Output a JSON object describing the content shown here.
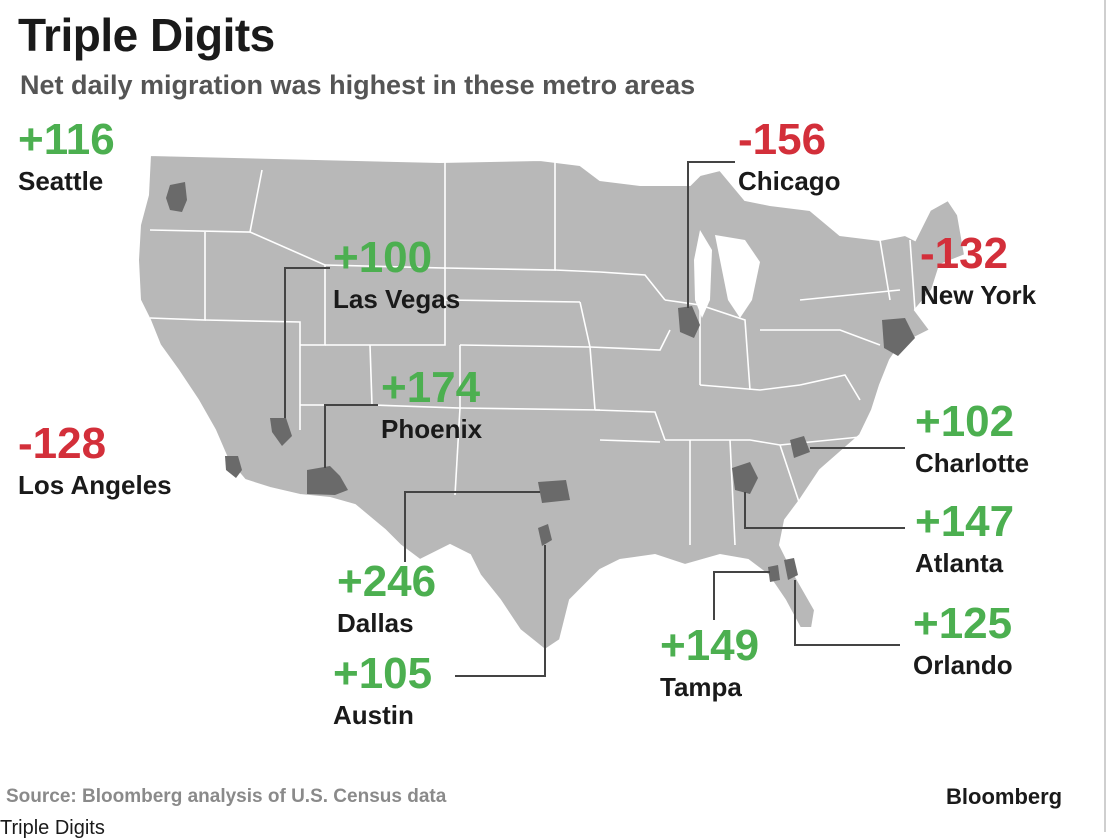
{
  "header": {
    "title": "Triple Digits",
    "subtitle": "Net daily migration was highest in these metro areas"
  },
  "colors": {
    "positive": "#4caf50",
    "negative": "#d32f3a",
    "land": "#b8b8b8",
    "metro": "#6a6a6a",
    "borders": "#ffffff"
  },
  "metros": [
    {
      "id": "seattle",
      "value": "+116",
      "city": "Seattle",
      "sign": "positive"
    },
    {
      "id": "las-vegas",
      "value": "+100",
      "city": "Las Vegas",
      "sign": "positive"
    },
    {
      "id": "los-angeles",
      "value": "-128",
      "city": "Los Angeles",
      "sign": "negative"
    },
    {
      "id": "phoenix",
      "value": "+174",
      "city": "Phoenix",
      "sign": "positive"
    },
    {
      "id": "dallas",
      "value": "+246",
      "city": "Dallas",
      "sign": "positive"
    },
    {
      "id": "austin",
      "value": "+105",
      "city": "Austin",
      "sign": "positive"
    },
    {
      "id": "chicago",
      "value": "-156",
      "city": "Chicago",
      "sign": "negative"
    },
    {
      "id": "new-york",
      "value": "-132",
      "city": "New York",
      "sign": "negative"
    },
    {
      "id": "charlotte",
      "value": "+102",
      "city": "Charlotte",
      "sign": "positive"
    },
    {
      "id": "atlanta",
      "value": "+147",
      "city": "Atlanta",
      "sign": "positive"
    },
    {
      "id": "tampa",
      "value": "+149",
      "city": "Tampa",
      "sign": "positive"
    },
    {
      "id": "orlando",
      "value": "+125",
      "city": "Orlando",
      "sign": "positive"
    }
  ],
  "footer": {
    "source": "Source: Bloomberg analysis of U.S. Census data",
    "brand": "Bloomberg",
    "caption": "Triple Digits"
  }
}
